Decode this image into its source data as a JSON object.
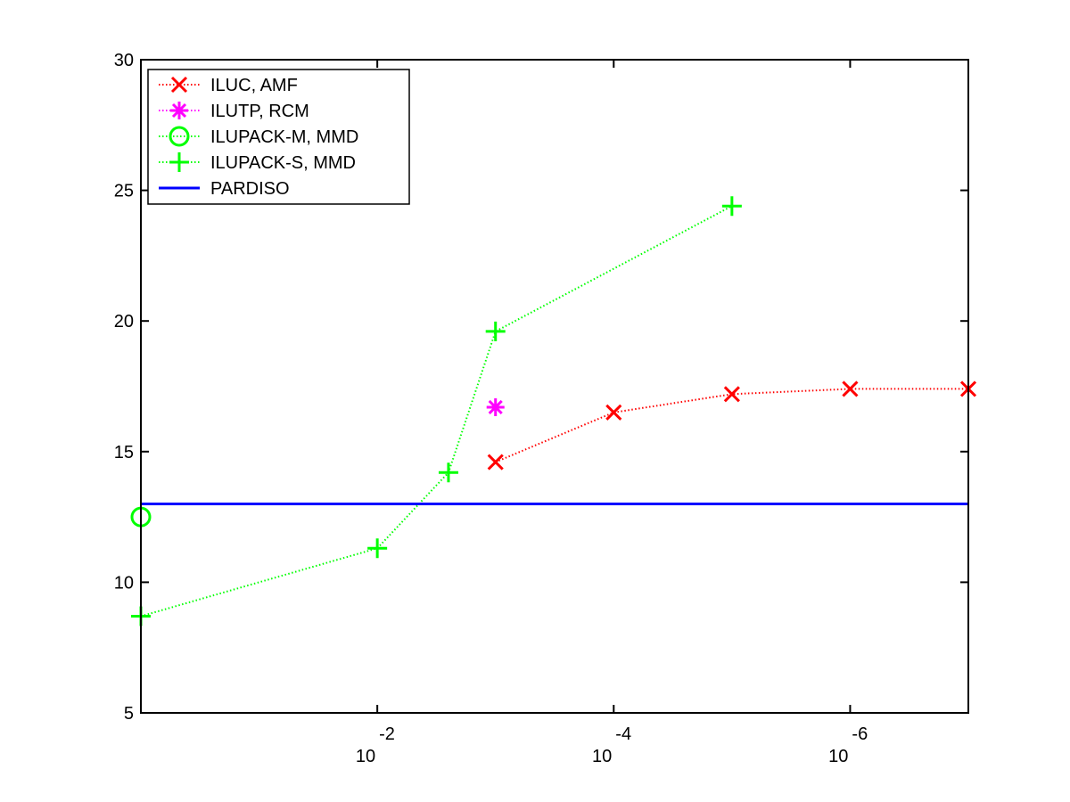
{
  "chart_data": {
    "type": "line",
    "title": "",
    "xlabel": "",
    "ylabel": "",
    "x_scale": "log",
    "x_reversed": true,
    "xlim": [
      1.0,
      1e-07
    ],
    "ylim": [
      5,
      30
    ],
    "y_ticks": [
      5,
      10,
      15,
      20,
      25,
      30
    ],
    "y_tick_labels": [
      "5",
      "10",
      "15",
      "20",
      "25",
      "30"
    ],
    "x_ticks": [
      0.01,
      0.0001,
      1e-06
    ],
    "x_tick_labels": [
      {
        "base": "10",
        "exp": "-2"
      },
      {
        "base": "10",
        "exp": "-4"
      },
      {
        "base": "10",
        "exp": "-6"
      }
    ],
    "grid": false,
    "legend_position": "top-left",
    "series": [
      {
        "name": "ILUC, AMF",
        "color": "#ff0000",
        "marker": "x",
        "line": "dotted",
        "points": [
          [
            0.001,
            14.6
          ],
          [
            0.0001,
            16.5
          ],
          [
            1e-05,
            17.2
          ],
          [
            1e-06,
            17.4
          ],
          [
            1e-07,
            17.4
          ]
        ]
      },
      {
        "name": "ILUTP, RCM",
        "color": "#ff00ff",
        "marker": "star",
        "line": "dotted",
        "points": [
          [
            0.001,
            16.7
          ]
        ]
      },
      {
        "name": "ILUPACK-M, MMD",
        "color": "#00ff00",
        "marker": "circle",
        "line": "dotted",
        "points": [
          [
            1.0,
            12.5
          ]
        ]
      },
      {
        "name": "ILUPACK-S, MMD",
        "color": "#00ff00",
        "marker": "plus",
        "line": "dotted",
        "points": [
          [
            1.0,
            8.7
          ],
          [
            0.01,
            11.3
          ],
          [
            0.0025,
            14.2
          ],
          [
            0.001,
            19.6
          ],
          [
            1e-05,
            24.4
          ]
        ]
      },
      {
        "name": "PARDISO",
        "color": "#0000ff",
        "marker": "none",
        "line": "solid",
        "points": [
          [
            1.0,
            13.0
          ],
          [
            1e-07,
            13.0
          ]
        ]
      }
    ]
  }
}
